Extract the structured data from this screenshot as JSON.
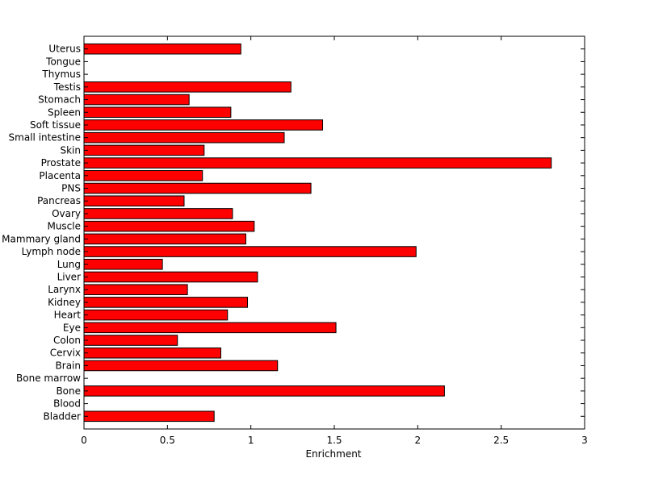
{
  "chart_data": {
    "type": "bar",
    "orientation": "horizontal",
    "categories": [
      "Bladder",
      "Blood",
      "Bone",
      "Bone marrow",
      "Brain",
      "Cervix",
      "Colon",
      "Eye",
      "Heart",
      "Kidney",
      "Larynx",
      "Liver",
      "Lung",
      "Lymph node",
      "Mammary gland",
      "Muscle",
      "Ovary",
      "Pancreas",
      "PNS",
      "Placenta",
      "Prostate",
      "Skin",
      "Small intestine",
      "Soft tissue",
      "Spleen",
      "Stomach",
      "Testis",
      "Thymus",
      "Tongue",
      "Uterus"
    ],
    "values": [
      0.78,
      0,
      2.16,
      0,
      1.16,
      0.82,
      0.56,
      1.51,
      0.86,
      0.98,
      0.62,
      1.04,
      0.47,
      1.99,
      0.97,
      1.02,
      0.89,
      0.6,
      1.36,
      0.71,
      2.8,
      0.72,
      1.2,
      1.43,
      0.88,
      0.63,
      1.24,
      0,
      0,
      0.94
    ],
    "xlabel": "Enrichment",
    "ylabel": "",
    "title": "",
    "xlim": [
      0,
      3
    ],
    "xticks": [
      "0",
      "0.5",
      "1",
      "1.5",
      "2",
      "2.5",
      "3"
    ],
    "bar_color": "#ff0000",
    "grid": false,
    "legend": "none"
  }
}
